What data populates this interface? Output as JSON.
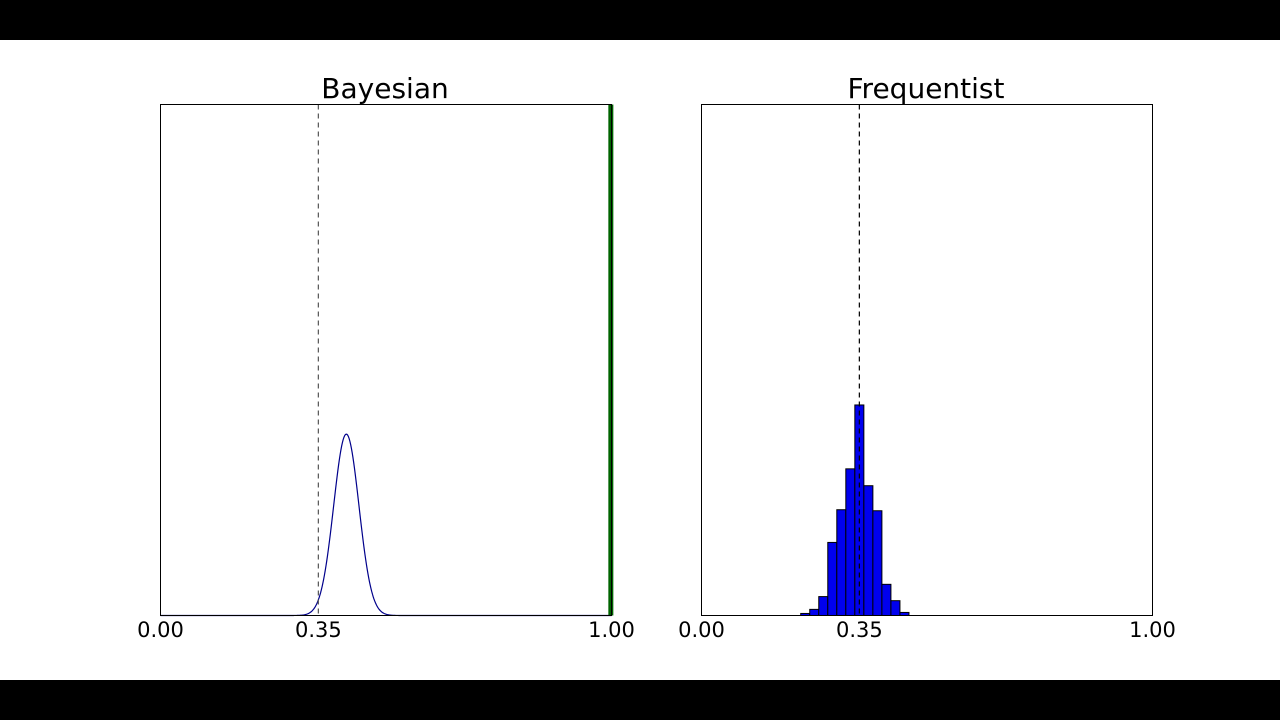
{
  "colors": {
    "letterbox": "#000000",
    "background": "#ffffff",
    "axes": "#000000",
    "reference_line": "#000000",
    "bayes_curve": "#00008b",
    "bayes_marker": "#006400",
    "hist_fill": "#0000ee",
    "hist_edge": "#000000"
  },
  "chart_data": [
    {
      "type": "line",
      "title": "Bayesian",
      "xlabel": "",
      "ylabel": "",
      "xlim": [
        0,
        1
      ],
      "ylim": [
        0,
        1
      ],
      "grid": false,
      "legend": "none",
      "x_ticks": [
        {
          "value": 0.0,
          "label": "0.00"
        },
        {
          "value": 0.35,
          "label": "0.35"
        },
        {
          "value": 1.0,
          "label": "1.00"
        }
      ],
      "reference_line": {
        "x": 0.35,
        "style": "dashed"
      },
      "highlight_bar": {
        "x_from": 0.993,
        "x_to": 1.0
      },
      "series": [
        {
          "distribution": "normal",
          "mean": 0.412,
          "sd": 0.028,
          "peak": 0.355,
          "x": [
            0.0,
            0.2,
            0.25,
            0.28,
            0.3,
            0.32,
            0.34,
            0.36,
            0.38,
            0.4,
            0.412,
            0.42,
            0.44,
            0.46,
            0.48,
            0.5,
            0.52,
            0.55,
            0.6,
            1.0
          ],
          "y": [
            0.0,
            0.0,
            0.0,
            0.0004,
            0.0041,
            0.023,
            0.0817,
            0.1904,
            0.2952,
            0.3425,
            0.355,
            0.3406,
            0.2692,
            0.1527,
            0.0618,
            0.0176,
            0.0035,
            0.0001,
            0.0,
            0.0
          ]
        }
      ]
    },
    {
      "type": "bar",
      "title": "Frequentist",
      "xlabel": "",
      "ylabel": "",
      "xlim": [
        0,
        1
      ],
      "ylim": [
        0,
        1
      ],
      "grid": false,
      "legend": "none",
      "x_ticks": [
        {
          "value": 0.0,
          "label": "0.00"
        },
        {
          "value": 0.35,
          "label": "0.35"
        },
        {
          "value": 1.0,
          "label": "1.00"
        }
      ],
      "reference_line": {
        "x": 0.35,
        "style": "dashed"
      },
      "bins": [
        {
          "x0": 0.22,
          "x1": 0.24,
          "value": 0.004
        },
        {
          "x0": 0.24,
          "x1": 0.26,
          "value": 0.012
        },
        {
          "x0": 0.26,
          "x1": 0.28,
          "value": 0.037
        },
        {
          "x0": 0.28,
          "x1": 0.3,
          "value": 0.143
        },
        {
          "x0": 0.3,
          "x1": 0.32,
          "value": 0.207
        },
        {
          "x0": 0.32,
          "x1": 0.34,
          "value": 0.287
        },
        {
          "x0": 0.34,
          "x1": 0.36,
          "value": 0.412
        },
        {
          "x0": 0.36,
          "x1": 0.38,
          "value": 0.254
        },
        {
          "x0": 0.38,
          "x1": 0.4,
          "value": 0.205
        },
        {
          "x0": 0.4,
          "x1": 0.42,
          "value": 0.061
        },
        {
          "x0": 0.42,
          "x1": 0.44,
          "value": 0.029
        },
        {
          "x0": 0.44,
          "x1": 0.46,
          "value": 0.006
        }
      ]
    }
  ]
}
